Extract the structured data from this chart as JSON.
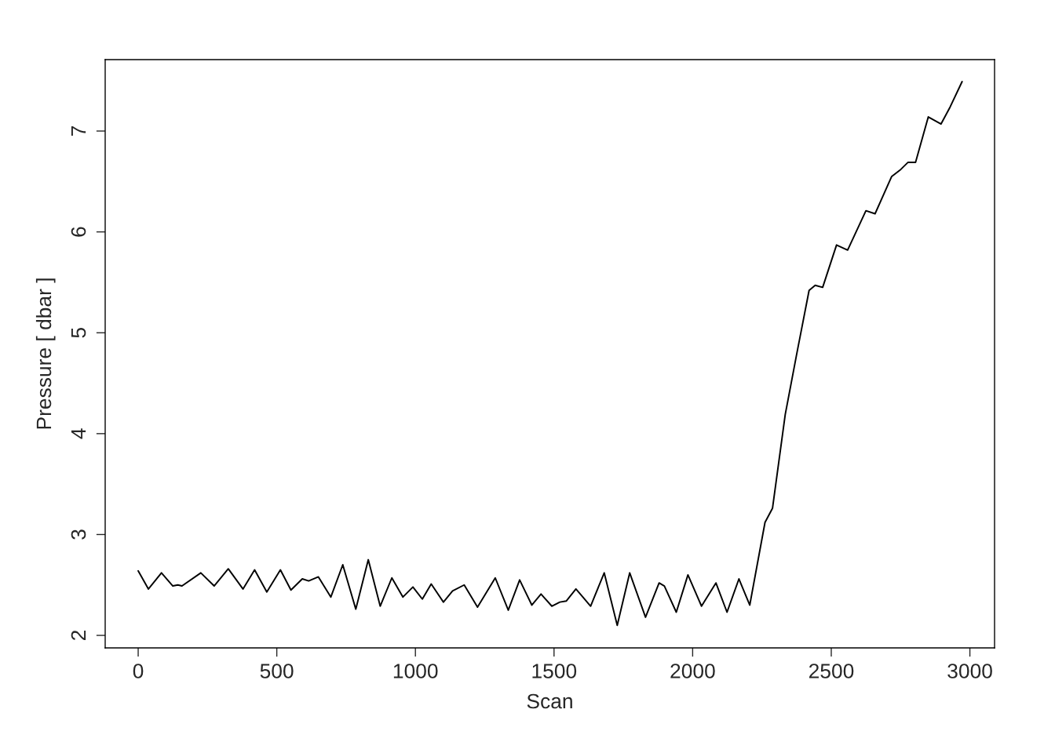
{
  "chart_data": {
    "type": "line",
    "xlabel": "Scan",
    "ylabel": "Pressure [ dbar ]",
    "xlim": [
      -119,
      3089
    ],
    "ylim": [
      1.876,
      7.708
    ],
    "xticks": [
      0,
      500,
      1000,
      1500,
      2000,
      2500,
      3000
    ],
    "yticks": [
      2,
      3,
      4,
      5,
      6,
      7
    ],
    "grid": false,
    "legend": false,
    "series": [
      {
        "color": "#000000",
        "x": [
          0,
          37,
          84,
          125,
          143,
          158,
          226,
          274,
          325,
          378,
          420,
          464,
          513,
          551,
          592,
          615,
          650,
          695,
          738,
          785,
          830,
          873,
          915,
          955,
          991,
          1025,
          1057,
          1101,
          1134,
          1176,
          1224,
          1288,
          1335,
          1376,
          1420,
          1453,
          1492,
          1521,
          1544,
          1579,
          1632,
          1681,
          1728,
          1773,
          1830,
          1879,
          1898,
          1941,
          1983,
          2032,
          2084,
          2124,
          2167,
          2206,
          2261,
          2288,
          2334,
          2374,
          2420,
          2442,
          2469,
          2519,
          2559,
          2625,
          2658,
          2718,
          2751,
          2777,
          2804,
          2850,
          2896,
          2929,
          2972
        ],
        "values": [
          2.64,
          2.46,
          2.62,
          2.49,
          2.5,
          2.49,
          2.62,
          2.49,
          2.66,
          2.46,
          2.65,
          2.43,
          2.65,
          2.45,
          2.56,
          2.54,
          2.58,
          2.38,
          2.7,
          2.26,
          2.75,
          2.29,
          2.57,
          2.38,
          2.48,
          2.36,
          2.51,
          2.33,
          2.44,
          2.5,
          2.28,
          2.57,
          2.25,
          2.55,
          2.3,
          2.41,
          2.29,
          2.33,
          2.34,
          2.46,
          2.29,
          2.62,
          2.1,
          2.62,
          2.18,
          2.52,
          2.49,
          2.23,
          2.6,
          2.29,
          2.52,
          2.23,
          2.56,
          2.3,
          3.12,
          3.26,
          4.19,
          4.77,
          5.42,
          5.47,
          5.45,
          5.87,
          5.82,
          6.21,
          6.18,
          6.55,
          6.62,
          6.69,
          6.69,
          7.14,
          7.07,
          7.24,
          7.49
        ]
      }
    ]
  }
}
